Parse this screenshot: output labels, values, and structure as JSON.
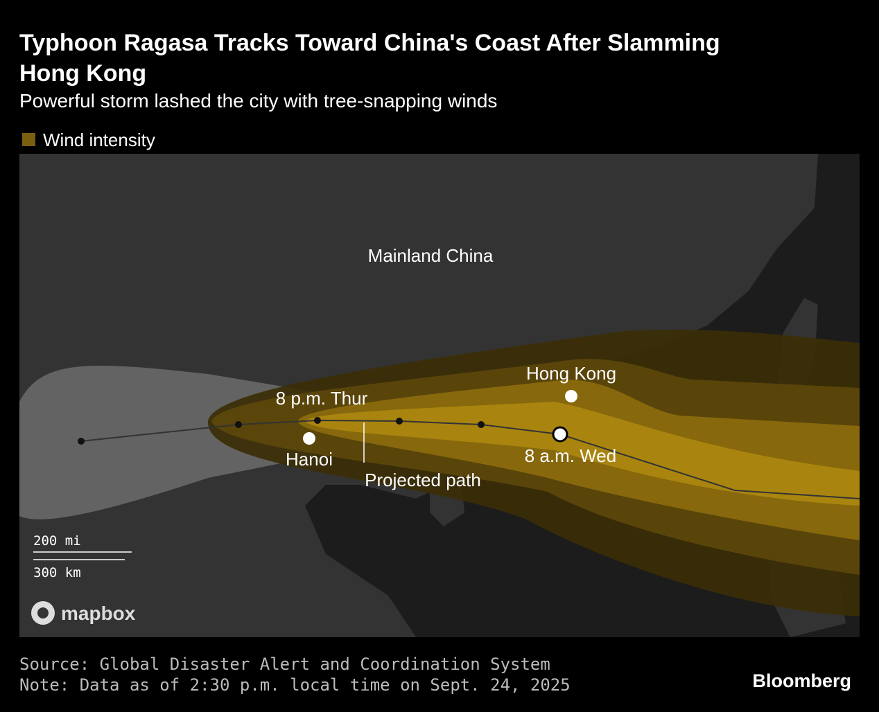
{
  "header": {
    "title_line1": "Typhoon Ragasa Tracks Toward China's Coast After Slamming",
    "title_line2": "Hong Kong",
    "subtitle": "Powerful storm lashed the city with tree-snapping winds"
  },
  "legend": {
    "label": "Wind intensity"
  },
  "map": {
    "labels": {
      "mainland": "Mainland China",
      "hong_kong": "Hong Kong",
      "hanoi": "Hanoi",
      "thur": "8 p.m. Thur",
      "wed": "8 a.m. Wed",
      "projected": "Projected path"
    },
    "scale": {
      "miles": "200 mi",
      "km": "300 km"
    },
    "attribution": "mapbox"
  },
  "footer": {
    "source": "Source: Global Disaster Alert and Coordination System",
    "note": "Note: Data as of 2:30 p.m. local time on Sept. 24, 2025",
    "brand": "Bloomberg"
  }
}
